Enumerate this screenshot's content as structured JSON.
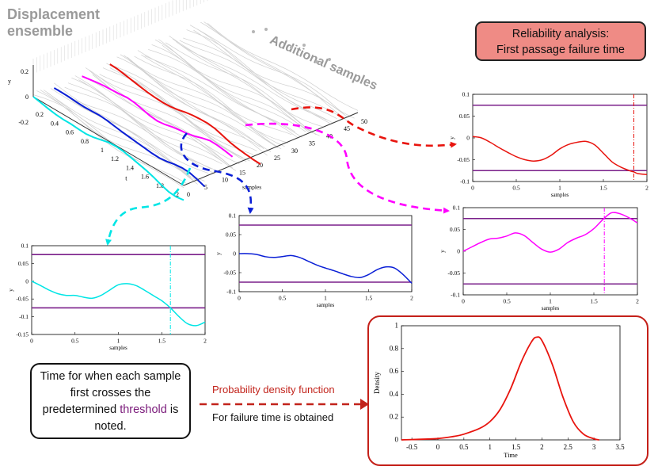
{
  "ensemble_title": "Displacement ensemble",
  "additional_samples": "Additional samples",
  "reliability": {
    "line1": "Reliability analysis:",
    "line2": "First passage failure time"
  },
  "note": {
    "part1": "Time for when each sample first crosses the predetermined ",
    "threshold_word": "threshold",
    "part2": " is noted."
  },
  "pdf_label": "Probability density function",
  "failure_label": "For failure time is obtained",
  "colors": {
    "cyan": "#00e5e5",
    "blue": "#0a1fd6",
    "magenta": "#ff00ff",
    "red": "#e8140e",
    "threshold": "#7a1f8a",
    "pdf_frame": "#c42019",
    "note_threshold": "#7a1a7a"
  },
  "ensemble_axes": {
    "y_ticks": [
      "0.2",
      "0",
      "-0.2"
    ],
    "t_ticks": [
      "0.2",
      "0.4",
      "0.6",
      "0.8",
      "1",
      "1.2",
      "1.4",
      "1.6",
      "1.8",
      "2"
    ],
    "sample_ticks": [
      "0",
      "5",
      "10",
      "15",
      "20",
      "25",
      "30",
      "35",
      "40",
      "45",
      "50"
    ],
    "y_label": "y",
    "t_label": "t",
    "sample_label": "samples"
  },
  "chart_data": [
    {
      "id": "red-sample",
      "type": "line",
      "xlabel": "samples",
      "ylabel": "y",
      "xlim": [
        0,
        2
      ],
      "ylim": [
        -0.1,
        0.1
      ],
      "xticks": [
        "0",
        "0.5",
        "1",
        "1.5",
        "2"
      ],
      "yticks": [
        "0.1",
        "0.05",
        "0",
        "-0.05",
        "-0.1"
      ],
      "thresholds": [
        0.075,
        -0.075
      ],
      "crossing_time": 1.85,
      "x": [
        0,
        0.1,
        0.2,
        0.3,
        0.4,
        0.5,
        0.6,
        0.7,
        0.8,
        0.9,
        1.0,
        1.1,
        1.2,
        1.3,
        1.4,
        1.5,
        1.6,
        1.7,
        1.8,
        1.85,
        1.9,
        2.0
      ],
      "y": [
        0.003,
        0.0,
        -0.01,
        -0.022,
        -0.033,
        -0.043,
        -0.05,
        -0.053,
        -0.05,
        -0.04,
        -0.025,
        -0.015,
        -0.01,
        -0.008,
        -0.016,
        -0.035,
        -0.055,
        -0.067,
        -0.075,
        -0.078,
        -0.082,
        -0.084
      ]
    },
    {
      "id": "magenta-sample",
      "type": "line",
      "xlabel": "samples",
      "ylabel": "y",
      "xlim": [
        0,
        2
      ],
      "ylim": [
        -0.1,
        0.1
      ],
      "xticks": [
        "0",
        "0.5",
        "1",
        "1.5",
        "2"
      ],
      "yticks": [
        "0.1",
        "0.05",
        "0",
        "-0.05",
        "-0.1"
      ],
      "thresholds": [
        0.075,
        -0.075
      ],
      "crossing_time": 1.62,
      "x": [
        0,
        0.1,
        0.2,
        0.3,
        0.4,
        0.5,
        0.6,
        0.7,
        0.8,
        0.9,
        1.0,
        1.1,
        1.2,
        1.3,
        1.4,
        1.5,
        1.6,
        1.7,
        1.8,
        1.9,
        2.0
      ],
      "y": [
        0.0,
        0.01,
        0.02,
        0.028,
        0.03,
        0.035,
        0.042,
        0.036,
        0.02,
        0.005,
        -0.002,
        0.005,
        0.02,
        0.03,
        0.038,
        0.052,
        0.072,
        0.088,
        0.086,
        0.077,
        0.065
      ]
    },
    {
      "id": "blue-sample",
      "type": "line",
      "xlabel": "samples",
      "ylabel": "y",
      "xlim": [
        0,
        2
      ],
      "ylim": [
        -0.1,
        0.1
      ],
      "xticks": [
        "0",
        "0.5",
        "1",
        "1.5",
        "2"
      ],
      "yticks": [
        "0.1",
        "0.05",
        "0",
        "-0.05",
        "-0.1"
      ],
      "thresholds": [
        0.075,
        -0.075
      ],
      "crossing_time": 2.0,
      "x": [
        0,
        0.1,
        0.2,
        0.3,
        0.4,
        0.5,
        0.6,
        0.7,
        0.8,
        0.9,
        1.0,
        1.1,
        1.2,
        1.3,
        1.4,
        1.5,
        1.6,
        1.7,
        1.8,
        1.9,
        2.0
      ],
      "y": [
        0.0,
        0.0,
        -0.002,
        -0.008,
        -0.01,
        -0.008,
        -0.005,
        -0.01,
        -0.02,
        -0.03,
        -0.038,
        -0.045,
        -0.053,
        -0.06,
        -0.063,
        -0.055,
        -0.042,
        -0.035,
        -0.038,
        -0.055,
        -0.078
      ]
    },
    {
      "id": "cyan-sample",
      "type": "line",
      "xlabel": "samples",
      "ylabel": "y",
      "xlim": [
        0,
        2
      ],
      "ylim": [
        -0.15,
        0.1
      ],
      "xticks": [
        "0",
        "0.5",
        "1",
        "1.5",
        "2"
      ],
      "yticks": [
        "0.1",
        "0.05",
        "0",
        "-0.05",
        "-0.1",
        "-0.15"
      ],
      "thresholds": [
        0.075,
        -0.075
      ],
      "crossing_time": 1.6,
      "x": [
        0,
        0.1,
        0.2,
        0.3,
        0.4,
        0.5,
        0.6,
        0.7,
        0.8,
        0.9,
        1.0,
        1.1,
        1.2,
        1.3,
        1.4,
        1.5,
        1.6,
        1.7,
        1.8,
        1.9,
        2.0
      ],
      "y": [
        0.0,
        -0.012,
        -0.025,
        -0.035,
        -0.04,
        -0.04,
        -0.045,
        -0.048,
        -0.04,
        -0.025,
        -0.01,
        -0.007,
        -0.012,
        -0.025,
        -0.04,
        -0.055,
        -0.075,
        -0.1,
        -0.12,
        -0.125,
        -0.115
      ]
    },
    {
      "id": "failure-time-pdf",
      "type": "line",
      "xlabel": "Time",
      "ylabel": "Density",
      "xlim": [
        -0.7,
        3.5
      ],
      "ylim": [
        0,
        1
      ],
      "xticks": [
        "-0.5",
        "0",
        "0.5",
        "1",
        "1.5",
        "2",
        "2.5",
        "3",
        "3.5"
      ],
      "yticks": [
        "1",
        "0.8",
        "0.6",
        "0.4",
        "0.2",
        "0"
      ],
      "x": [
        -0.7,
        -0.5,
        0.0,
        0.3,
        0.5,
        0.8,
        1.0,
        1.2,
        1.4,
        1.6,
        1.8,
        1.9,
        2.0,
        2.2,
        2.4,
        2.6,
        2.8,
        3.0,
        3.1
      ],
      "y": [
        0.0,
        0.003,
        0.012,
        0.03,
        0.05,
        0.1,
        0.16,
        0.27,
        0.45,
        0.68,
        0.86,
        0.9,
        0.87,
        0.66,
        0.38,
        0.16,
        0.05,
        0.01,
        0.0
      ]
    }
  ]
}
